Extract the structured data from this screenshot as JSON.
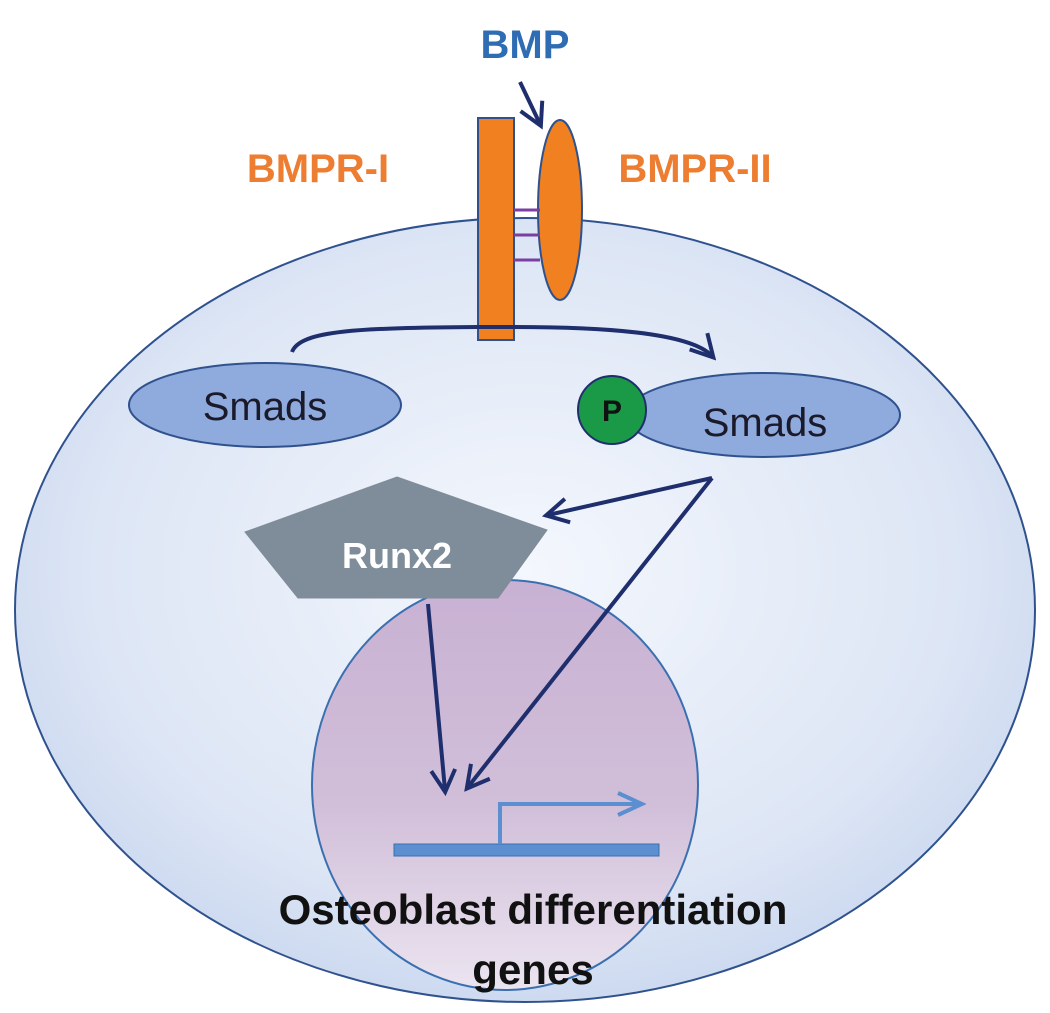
{
  "labels": {
    "ligand": "BMP",
    "receptor_1": "BMPR-I",
    "receptor_2": "BMPR-II",
    "smads_inactive": "Smads",
    "smads_active": "Smads",
    "phospho": "P",
    "runx": "Runx2",
    "genes_line1": "Osteoblast differentiation",
    "genes_line2": "genes"
  },
  "colors": {
    "ligand_text": "#2e6db4",
    "receptor_text": "#ed7d31",
    "receptor_fill": "#f08020",
    "receptor_stroke": "#2f528f",
    "arrow": "#1f2f6e",
    "smads_fill": "#8faadc",
    "phospho_fill": "#1a9a46",
    "runx_fill": "#7f8c99",
    "runx_text": "#ffffff",
    "gene_bar": "#5b8fd0",
    "genes_text": "#111111"
  }
}
